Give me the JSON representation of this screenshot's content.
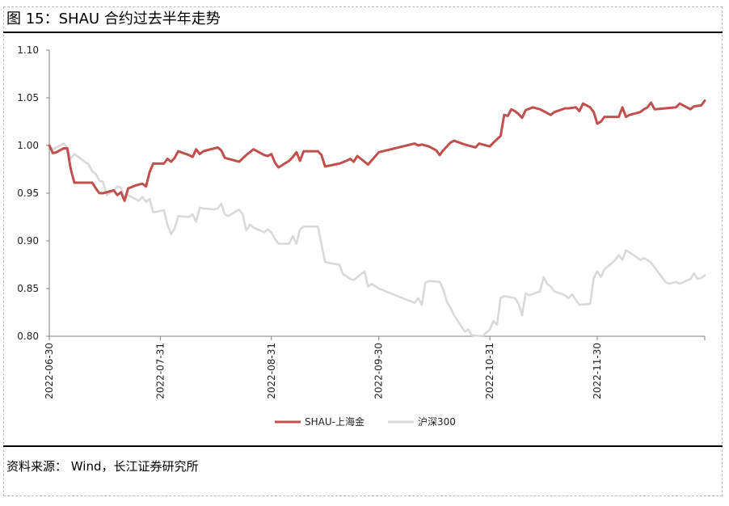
{
  "figure": {
    "title": "图 15：SHAU 合约过去半年走势",
    "source": "资料来源： Wind，长江证券研究所"
  },
  "chart_data": {
    "type": "line",
    "title": "",
    "xlabel": "",
    "ylabel": "",
    "ylim": [
      0.8,
      1.1
    ],
    "y_ticks": [
      "0.80",
      "0.85",
      "0.90",
      "0.95",
      "1.00",
      "1.05",
      "1.10"
    ],
    "x_tick_labels": [
      "2022-06-30",
      "2022-07-31",
      "2022-08-31",
      "2022-09-30",
      "2022-10-31",
      "2022-11-30"
    ],
    "x_range": [
      "2022-06-30",
      "2022-12-30"
    ],
    "grid": false,
    "legend_position": "bottom",
    "series": [
      {
        "name": "SHAU-上海金",
        "color": "#C0504D",
        "points": [
          [
            "2022-06-30",
            1.0
          ],
          [
            "2022-07-01",
            0.992
          ],
          [
            "2022-07-02",
            0.993
          ],
          [
            "2022-07-04",
            0.997
          ],
          [
            "2022-07-05",
            0.997
          ],
          [
            "2022-07-06",
            0.975
          ],
          [
            "2022-07-07",
            0.961
          ],
          [
            "2022-07-11",
            0.961
          ],
          [
            "2022-07-12",
            0.961
          ],
          [
            "2022-07-13",
            0.955
          ],
          [
            "2022-07-14",
            0.95
          ],
          [
            "2022-07-15",
            0.95
          ],
          [
            "2022-07-18",
            0.953
          ],
          [
            "2022-07-19",
            0.948
          ],
          [
            "2022-07-20",
            0.951
          ],
          [
            "2022-07-21",
            0.942
          ],
          [
            "2022-07-22",
            0.955
          ],
          [
            "2022-07-24",
            0.958
          ],
          [
            "2022-07-26",
            0.96
          ],
          [
            "2022-07-27",
            0.957
          ],
          [
            "2022-07-28",
            0.972
          ],
          [
            "2022-07-29",
            0.981
          ],
          [
            "2022-08-01",
            0.981
          ],
          [
            "2022-08-02",
            0.986
          ],
          [
            "2022-08-03",
            0.983
          ],
          [
            "2022-08-04",
            0.987
          ],
          [
            "2022-08-05",
            0.994
          ],
          [
            "2022-08-08",
            0.99
          ],
          [
            "2022-08-09",
            0.988
          ],
          [
            "2022-08-10",
            0.996
          ],
          [
            "2022-08-11",
            0.991
          ],
          [
            "2022-08-12",
            0.994
          ],
          [
            "2022-08-16",
            0.998
          ],
          [
            "2022-08-17",
            0.995
          ],
          [
            "2022-08-18",
            0.987
          ],
          [
            "2022-08-22",
            0.983
          ],
          [
            "2022-08-24",
            0.99
          ],
          [
            "2022-08-26",
            0.996
          ],
          [
            "2022-08-29",
            0.99
          ],
          [
            "2022-08-30",
            0.989
          ],
          [
            "2022-08-31",
            0.991
          ],
          [
            "2022-09-01",
            0.982
          ],
          [
            "2022-09-02",
            0.977
          ],
          [
            "2022-09-05",
            0.984
          ],
          [
            "2022-09-06",
            0.988
          ],
          [
            "2022-09-07",
            0.993
          ],
          [
            "2022-09-08",
            0.984
          ],
          [
            "2022-09-09",
            0.994
          ],
          [
            "2022-09-13",
            0.994
          ],
          [
            "2022-09-14",
            0.99
          ],
          [
            "2022-09-15",
            0.978
          ],
          [
            "2022-09-19",
            0.981
          ],
          [
            "2022-09-21",
            0.984
          ],
          [
            "2022-09-22",
            0.986
          ],
          [
            "2022-09-23",
            0.983
          ],
          [
            "2022-09-24",
            0.989
          ],
          [
            "2022-09-27",
            0.98
          ],
          [
            "2022-09-30",
            0.993
          ],
          [
            "2022-10-10",
            1.002
          ],
          [
            "2022-10-11",
            1.0
          ],
          [
            "2022-10-12",
            1.001
          ],
          [
            "2022-10-14",
            0.999
          ],
          [
            "2022-10-16",
            0.995
          ],
          [
            "2022-10-17",
            0.99
          ],
          [
            "2022-10-18",
            0.995
          ],
          [
            "2022-10-20",
            1.003
          ],
          [
            "2022-10-21",
            1.005
          ],
          [
            "2022-10-24",
            1.001
          ],
          [
            "2022-10-27",
            0.998
          ],
          [
            "2022-10-28",
            1.002
          ],
          [
            "2022-10-31",
            0.999
          ],
          [
            "2022-11-01",
            1.003
          ],
          [
            "2022-11-03",
            1.01
          ],
          [
            "2022-11-04",
            1.032
          ],
          [
            "2022-11-05",
            1.031
          ],
          [
            "2022-11-06",
            1.038
          ],
          [
            "2022-11-07",
            1.036
          ],
          [
            "2022-11-08",
            1.033
          ],
          [
            "2022-11-09",
            1.029
          ],
          [
            "2022-11-10",
            1.037
          ],
          [
            "2022-11-12",
            1.04
          ],
          [
            "2022-11-14",
            1.038
          ],
          [
            "2022-11-15",
            1.036
          ],
          [
            "2022-11-17",
            1.032
          ],
          [
            "2022-11-18",
            1.035
          ],
          [
            "2022-11-21",
            1.039
          ],
          [
            "2022-11-22",
            1.039
          ],
          [
            "2022-11-24",
            1.04
          ],
          [
            "2022-11-25",
            1.036
          ],
          [
            "2022-11-26",
            1.044
          ],
          [
            "2022-11-28",
            1.04
          ],
          [
            "2022-11-29",
            1.035
          ],
          [
            "2022-11-30",
            1.023
          ],
          [
            "2022-12-01",
            1.025
          ],
          [
            "2022-12-02",
            1.03
          ],
          [
            "2022-12-06",
            1.03
          ],
          [
            "2022-12-07",
            1.04
          ],
          [
            "2022-12-08",
            1.03
          ],
          [
            "2022-12-09",
            1.032
          ],
          [
            "2022-12-12",
            1.035
          ],
          [
            "2022-12-13",
            1.038
          ],
          [
            "2022-12-14",
            1.04
          ],
          [
            "2022-12-15",
            1.045
          ],
          [
            "2022-12-16",
            1.038
          ],
          [
            "2022-12-19",
            1.039
          ],
          [
            "2022-12-22",
            1.04
          ],
          [
            "2022-12-23",
            1.044
          ],
          [
            "2022-12-26",
            1.038
          ],
          [
            "2022-12-27",
            1.041
          ],
          [
            "2022-12-29",
            1.042
          ],
          [
            "2022-12-30",
            1.047
          ]
        ]
      },
      {
        "name": "沪深300",
        "color": "#D9D9D9",
        "points": [
          [
            "2022-06-30",
            1.0
          ],
          [
            "2022-07-01",
            0.996
          ],
          [
            "2022-07-04",
            1.002
          ],
          [
            "2022-07-05",
            0.998
          ],
          [
            "2022-07-06",
            0.986
          ],
          [
            "2022-07-07",
            0.991
          ],
          [
            "2022-07-11",
            0.98
          ],
          [
            "2022-07-12",
            0.973
          ],
          [
            "2022-07-13",
            0.97
          ],
          [
            "2022-07-14",
            0.963
          ],
          [
            "2022-07-15",
            0.962
          ],
          [
            "2022-07-16",
            0.948
          ],
          [
            "2022-07-18",
            0.953
          ],
          [
            "2022-07-19",
            0.957
          ],
          [
            "2022-07-20",
            0.956
          ],
          [
            "2022-07-21",
            0.945
          ],
          [
            "2022-07-22",
            0.948
          ],
          [
            "2022-07-25",
            0.942
          ],
          [
            "2022-07-26",
            0.946
          ],
          [
            "2022-07-27",
            0.941
          ],
          [
            "2022-07-28",
            0.944
          ],
          [
            "2022-07-29",
            0.93
          ],
          [
            "2022-08-01",
            0.932
          ],
          [
            "2022-08-02",
            0.917
          ],
          [
            "2022-08-03",
            0.907
          ],
          [
            "2022-08-04",
            0.913
          ],
          [
            "2022-08-05",
            0.926
          ],
          [
            "2022-08-08",
            0.925
          ],
          [
            "2022-08-09",
            0.928
          ],
          [
            "2022-08-10",
            0.92
          ],
          [
            "2022-08-11",
            0.935
          ],
          [
            "2022-08-12",
            0.934
          ],
          [
            "2022-08-15",
            0.933
          ],
          [
            "2022-08-16",
            0.934
          ],
          [
            "2022-08-17",
            0.939
          ],
          [
            "2022-08-18",
            0.928
          ],
          [
            "2022-08-19",
            0.926
          ],
          [
            "2022-08-22",
            0.933
          ],
          [
            "2022-08-23",
            0.928
          ],
          [
            "2022-08-24",
            0.911
          ],
          [
            "2022-08-25",
            0.917
          ],
          [
            "2022-08-26",
            0.914
          ],
          [
            "2022-08-29",
            0.909
          ],
          [
            "2022-08-30",
            0.912
          ],
          [
            "2022-08-31",
            0.909
          ],
          [
            "2022-09-01",
            0.902
          ],
          [
            "2022-09-02",
            0.897
          ],
          [
            "2022-09-05",
            0.897
          ],
          [
            "2022-09-06",
            0.905
          ],
          [
            "2022-09-07",
            0.897
          ],
          [
            "2022-09-08",
            0.912
          ],
          [
            "2022-09-09",
            0.915
          ],
          [
            "2022-09-13",
            0.915
          ],
          [
            "2022-09-14",
            0.896
          ],
          [
            "2022-09-15",
            0.878
          ],
          [
            "2022-09-16",
            0.877
          ],
          [
            "2022-09-19",
            0.875
          ],
          [
            "2022-09-20",
            0.865
          ],
          [
            "2022-09-21",
            0.863
          ],
          [
            "2022-09-22",
            0.86
          ],
          [
            "2022-09-23",
            0.859
          ],
          [
            "2022-09-26",
            0.868
          ],
          [
            "2022-09-27",
            0.852
          ],
          [
            "2022-09-28",
            0.855
          ],
          [
            "2022-09-30",
            0.85
          ],
          [
            "2022-10-10",
            0.835
          ],
          [
            "2022-10-11",
            0.84
          ],
          [
            "2022-10-12",
            0.833
          ],
          [
            "2022-10-13",
            0.856
          ],
          [
            "2022-10-14",
            0.858
          ],
          [
            "2022-10-17",
            0.857
          ],
          [
            "2022-10-18",
            0.849
          ],
          [
            "2022-10-19",
            0.836
          ],
          [
            "2022-10-20",
            0.83
          ],
          [
            "2022-10-21",
            0.822
          ],
          [
            "2022-10-24",
            0.805
          ],
          [
            "2022-10-25",
            0.807
          ],
          [
            "2022-10-26",
            0.801
          ],
          [
            "2022-10-27",
            0.794
          ],
          [
            "2022-10-28",
            0.79
          ],
          [
            "2022-10-29",
            0.8
          ],
          [
            "2022-10-30",
            0.804
          ],
          [
            "2022-10-31",
            0.807
          ],
          [
            "2022-11-01",
            0.816
          ],
          [
            "2022-11-02",
            0.812
          ],
          [
            "2022-11-03",
            0.84
          ],
          [
            "2022-11-04",
            0.842
          ],
          [
            "2022-11-07",
            0.84
          ],
          [
            "2022-11-08",
            0.834
          ],
          [
            "2022-11-09",
            0.822
          ],
          [
            "2022-11-10",
            0.845
          ],
          [
            "2022-11-11",
            0.843
          ],
          [
            "2022-11-14",
            0.847
          ],
          [
            "2022-11-15",
            0.862
          ],
          [
            "2022-11-16",
            0.855
          ],
          [
            "2022-11-17",
            0.852
          ],
          [
            "2022-11-18",
            0.847
          ],
          [
            "2022-11-21",
            0.843
          ],
          [
            "2022-11-22",
            0.84
          ],
          [
            "2022-11-23",
            0.844
          ],
          [
            "2022-11-24",
            0.838
          ],
          [
            "2022-11-25",
            0.833
          ],
          [
            "2022-11-28",
            0.834
          ],
          [
            "2022-11-29",
            0.861
          ],
          [
            "2022-11-30",
            0.868
          ],
          [
            "2022-12-01",
            0.862
          ],
          [
            "2022-12-02",
            0.87
          ],
          [
            "2022-12-05",
            0.88
          ],
          [
            "2022-12-06",
            0.885
          ],
          [
            "2022-12-07",
            0.88
          ],
          [
            "2022-12-08",
            0.89
          ],
          [
            "2022-12-09",
            0.888
          ],
          [
            "2022-12-12",
            0.88
          ],
          [
            "2022-12-13",
            0.882
          ],
          [
            "2022-12-14",
            0.88
          ],
          [
            "2022-12-15",
            0.877
          ],
          [
            "2022-12-16",
            0.872
          ],
          [
            "2022-12-19",
            0.857
          ],
          [
            "2022-12-20",
            0.855
          ],
          [
            "2022-12-21",
            0.856
          ],
          [
            "2022-12-22",
            0.857
          ],
          [
            "2022-12-23",
            0.855
          ],
          [
            "2022-12-26",
            0.86
          ],
          [
            "2022-12-27",
            0.866
          ],
          [
            "2022-12-28",
            0.86
          ],
          [
            "2022-12-29",
            0.861
          ],
          [
            "2022-12-30",
            0.864
          ]
        ]
      }
    ]
  }
}
